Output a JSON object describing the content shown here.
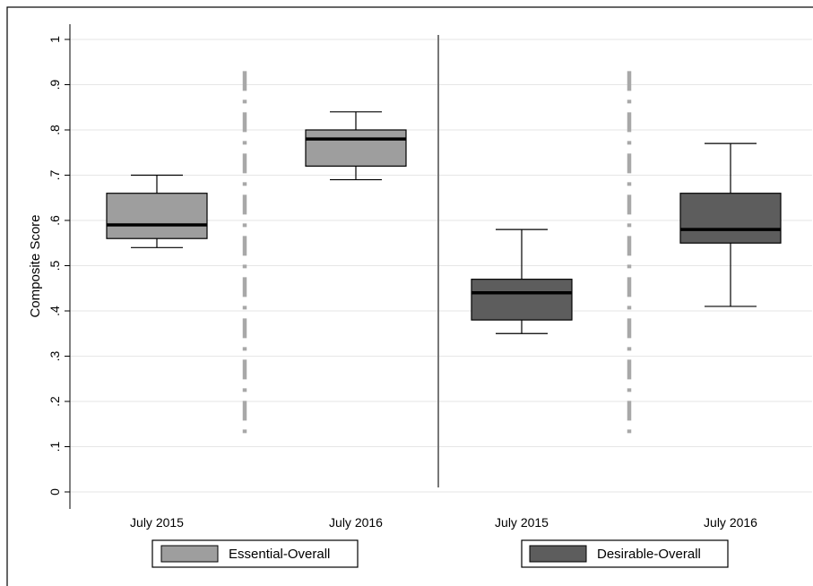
{
  "chart_data": {
    "type": "box",
    "ylabel": "Composite Score",
    "ylim": [
      0,
      1
    ],
    "yticks": [
      "0",
      ".1",
      ".2",
      ".3",
      ".4",
      ".5",
      ".6",
      ".7",
      ".8",
      ".9",
      "1"
    ],
    "grid": true,
    "legend_position": "bottom",
    "categories": [
      "July 2015",
      "July 2016",
      "July 2015",
      "July 2016"
    ],
    "series": [
      {
        "name": "Essential-Overall",
        "color": "#9e9e9e",
        "boxes": [
          {
            "category": "July 2015",
            "min": 0.54,
            "q1": 0.56,
            "median": 0.59,
            "q3": 0.66,
            "max": 0.7
          },
          {
            "category": "July 2016",
            "min": 0.69,
            "q1": 0.72,
            "median": 0.78,
            "q3": 0.8,
            "max": 0.84
          }
        ]
      },
      {
        "name": "Desirable-Overall",
        "color": "#5d5d5d",
        "boxes": [
          {
            "category": "July 2015",
            "min": 0.35,
            "q1": 0.38,
            "median": 0.44,
            "q3": 0.47,
            "max": 0.58
          },
          {
            "category": "July 2016",
            "min": 0.41,
            "q1": 0.55,
            "median": 0.58,
            "q3": 0.66,
            "max": 0.77
          }
        ]
      }
    ],
    "reference_lines": [
      {
        "style": "dash-dot",
        "color": "#a8a8a8",
        "from": 0.13,
        "to": 0.93
      },
      {
        "style": "solid",
        "color": "#777777",
        "from": 0.01,
        "to": 1.01
      },
      {
        "style": "dash-dot",
        "color": "#a8a8a8",
        "from": 0.13,
        "to": 0.93
      }
    ]
  }
}
